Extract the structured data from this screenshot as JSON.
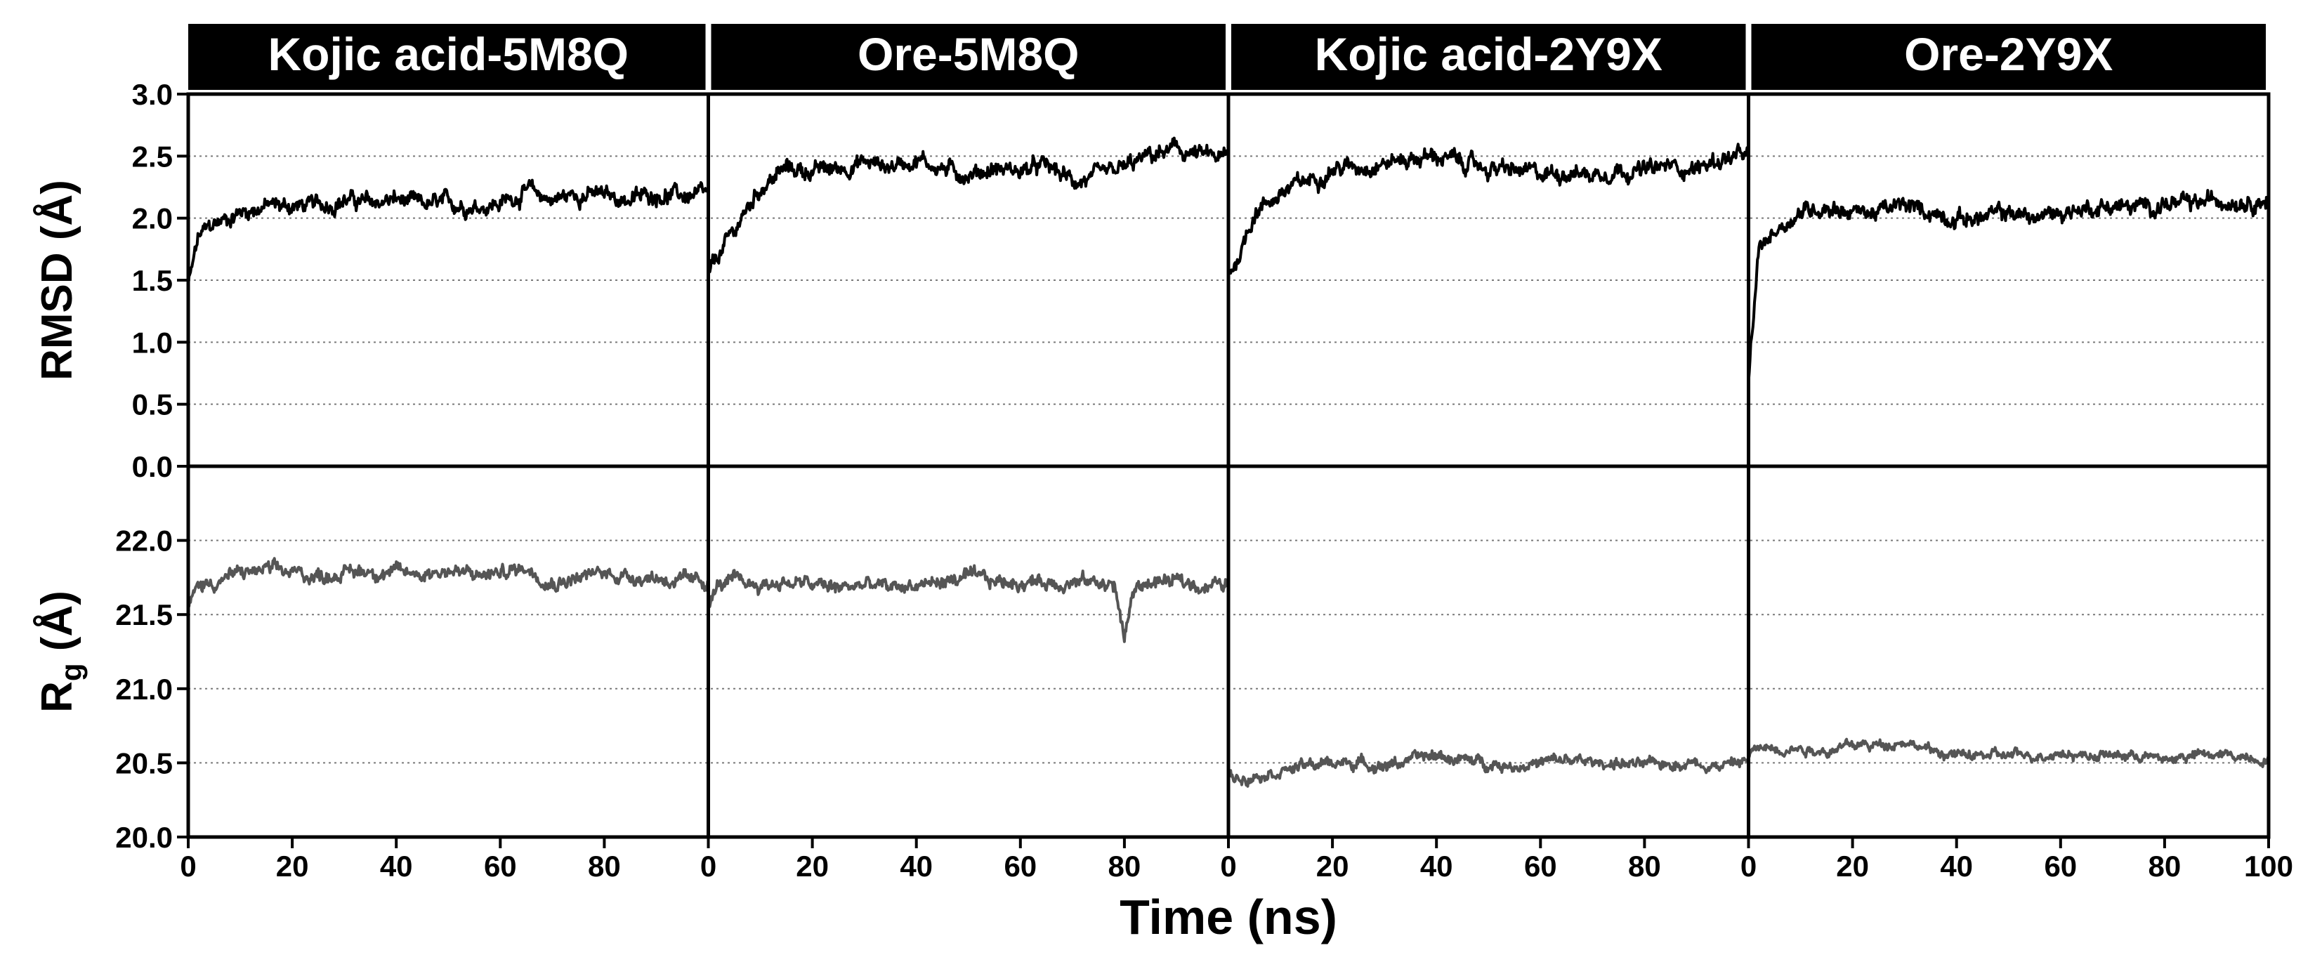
{
  "chart_data": {
    "type": "line",
    "title": "",
    "xlabel": "Time (ns)",
    "xlim": [
      0,
      100
    ],
    "x_ticks": [
      0,
      20,
      40,
      60,
      80,
      100
    ],
    "x_tick_labels_per_panel": [
      [
        "0",
        "20",
        "40",
        "60",
        "80"
      ],
      [
        "0",
        "20",
        "40",
        "60",
        "80"
      ],
      [
        "0",
        "20",
        "40",
        "60",
        "80"
      ],
      [
        "0",
        "20",
        "40",
        "60",
        "80",
        "100"
      ]
    ],
    "panels": [
      "Kojic acid-5M8Q",
      "Ore-5M8Q",
      "Kojic acid-2Y9X",
      "Ore-2Y9X"
    ],
    "rows": [
      {
        "name": "RMSD",
        "ylabel": "RMSD (Å)",
        "ylim": [
          0.0,
          3.0
        ],
        "yticks": [
          "0.0",
          "0.5",
          "1.0",
          "1.5",
          "2.0",
          "2.5",
          "3.0"
        ],
        "color": "#000000",
        "series": [
          {
            "panel": "Kojic acid-5M8Q",
            "x": [
              0,
              2,
              5,
              10,
              15,
              20,
              25,
              30,
              35,
              40,
              45,
              50,
              55,
              60,
              65,
              70,
              75,
              80,
              85,
              90,
              95,
              100
            ],
            "values": [
              1.45,
              1.85,
              1.95,
              2.05,
              2.1,
              2.1,
              2.1,
              2.15,
              2.12,
              2.15,
              2.1,
              2.12,
              2.1,
              2.12,
              2.22,
              2.15,
              2.2,
              2.18,
              2.15,
              2.2,
              2.18,
              2.18
            ],
            "noise": 0.07
          },
          {
            "panel": "Ore-5M8Q",
            "x": [
              0,
              2,
              5,
              10,
              15,
              20,
              25,
              30,
              35,
              40,
              45,
              50,
              55,
              60,
              65,
              70,
              75,
              80,
              85,
              90,
              95,
              100
            ],
            "values": [
              1.55,
              1.7,
              1.9,
              2.25,
              2.4,
              2.38,
              2.4,
              2.45,
              2.42,
              2.48,
              2.4,
              2.35,
              2.4,
              2.38,
              2.42,
              2.3,
              2.32,
              2.4,
              2.5,
              2.55,
              2.5,
              2.48
            ],
            "noise": 0.07
          },
          {
            "panel": "Kojic acid-2Y9X",
            "x": [
              0,
              2,
              5,
              10,
              15,
              20,
              25,
              30,
              35,
              40,
              45,
              50,
              55,
              60,
              65,
              70,
              75,
              80,
              85,
              90,
              95,
              100
            ],
            "values": [
              1.55,
              1.7,
              2.05,
              2.2,
              2.3,
              2.4,
              2.42,
              2.45,
              2.48,
              2.5,
              2.45,
              2.4,
              2.38,
              2.35,
              2.38,
              2.35,
              2.4,
              2.38,
              2.42,
              2.4,
              2.48,
              2.5
            ],
            "noise": 0.07
          },
          {
            "panel": "Ore-2Y9X",
            "x": [
              0,
              2,
              5,
              10,
              15,
              20,
              25,
              30,
              35,
              40,
              45,
              50,
              55,
              60,
              65,
              70,
              75,
              80,
              85,
              90,
              95,
              100
            ],
            "values": [
              0.7,
              1.75,
              1.9,
              2.05,
              2.1,
              2.05,
              2.05,
              2.1,
              2.05,
              2.0,
              2.0,
              2.05,
              2.0,
              2.05,
              2.08,
              2.1,
              2.08,
              2.12,
              2.1,
              2.15,
              2.15,
              2.15
            ],
            "noise": 0.07
          }
        ]
      },
      {
        "name": "Rg",
        "ylabel_main": "R",
        "ylabel_sub": "g",
        "ylabel_unit": " (Å)",
        "ylim": [
          20.0,
          22.5
        ],
        "yticks": [
          "20.0",
          "20.5",
          "21.0",
          "21.5",
          "22.0"
        ],
        "color": "#555555",
        "series": [
          {
            "panel": "Kojic acid-5M8Q",
            "x": [
              0,
              2,
              5,
              10,
              15,
              20,
              25,
              30,
              35,
              40,
              45,
              50,
              55,
              60,
              65,
              70,
              75,
              80,
              85,
              90,
              95,
              100
            ],
            "values": [
              21.55,
              21.7,
              21.72,
              21.78,
              21.8,
              21.78,
              21.76,
              21.78,
              21.8,
              21.78,
              21.78,
              21.8,
              21.76,
              21.78,
              21.82,
              21.72,
              21.75,
              21.78,
              21.76,
              21.75,
              21.72,
              21.72
            ],
            "noise": 0.05
          },
          {
            "panel": "Ore-5M8Q",
            "x": [
              0,
              2,
              5,
              10,
              15,
              20,
              25,
              30,
              35,
              40,
              45,
              50,
              55,
              60,
              65,
              70,
              75,
              78,
              80,
              82,
              85,
              90,
              95,
              100
            ],
            "values": [
              21.55,
              21.7,
              21.72,
              21.7,
              21.72,
              21.7,
              21.68,
              21.7,
              21.68,
              21.7,
              21.72,
              21.75,
              21.72,
              21.72,
              21.72,
              21.72,
              21.72,
              21.7,
              21.35,
              21.68,
              21.72,
              21.72,
              21.7,
              21.7
            ],
            "noise": 0.05
          },
          {
            "panel": "Kojic acid-2Y9X",
            "x": [
              0,
              2,
              5,
              10,
              15,
              20,
              25,
              30,
              35,
              40,
              45,
              50,
              55,
              60,
              65,
              70,
              75,
              80,
              85,
              90,
              95,
              100
            ],
            "values": [
              20.42,
              20.4,
              20.42,
              20.45,
              20.48,
              20.5,
              20.5,
              20.48,
              20.52,
              20.55,
              20.52,
              20.5,
              20.48,
              20.5,
              20.52,
              20.5,
              20.5,
              20.48,
              20.5,
              20.5,
              20.48,
              20.52
            ],
            "noise": 0.04
          },
          {
            "panel": "Ore-2Y9X",
            "x": [
              0,
              2,
              5,
              10,
              15,
              20,
              25,
              30,
              35,
              40,
              45,
              50,
              55,
              60,
              65,
              70,
              75,
              80,
              85,
              90,
              95,
              100
            ],
            "values": [
              20.55,
              20.6,
              20.6,
              20.6,
              20.58,
              20.62,
              20.62,
              20.65,
              20.58,
              20.55,
              20.55,
              20.55,
              20.55,
              20.57,
              20.55,
              20.55,
              20.55,
              20.52,
              20.55,
              20.55,
              20.55,
              20.52
            ],
            "noise": 0.035
          }
        ]
      }
    ]
  }
}
